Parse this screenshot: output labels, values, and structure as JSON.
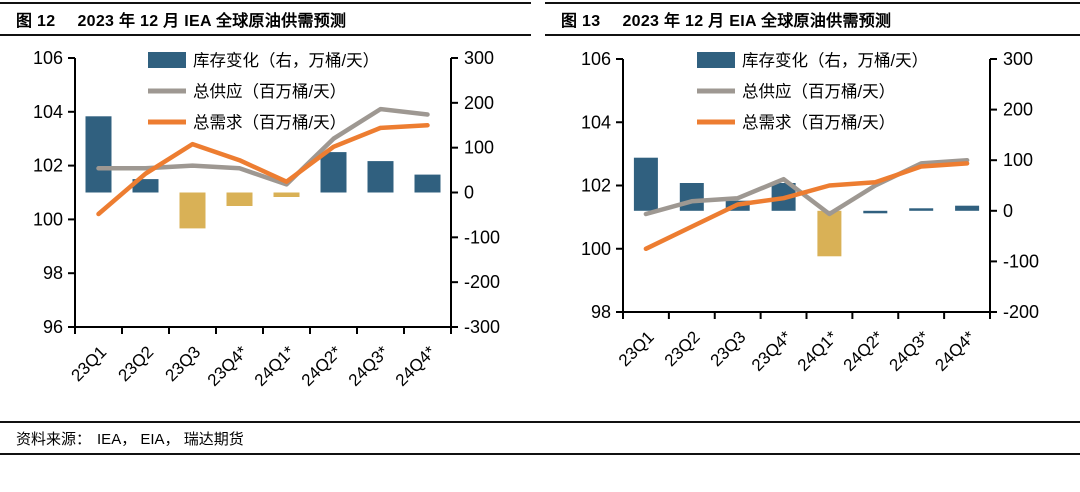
{
  "figures": [
    {
      "fig_label": "图 12",
      "title": "2023 年 12 月 IEA 全球原油供需预测"
    },
    {
      "fig_label": "图 13",
      "title": "2023 年 12 月 EIA 全球原油供需预测"
    }
  ],
  "chart_data": [
    {
      "type": "combo bar+line",
      "title": "图 12 2023 年 12 月 IEA 全球原油供需预测",
      "categories": [
        "23Q1",
        "23Q2",
        "23Q3",
        "23Q4*",
        "24Q1*",
        "24Q2*",
        "24Q3*",
        "24Q4*"
      ],
      "legend": [
        "库存变化（右，万桶/天）",
        "总供应（百万桶/天）",
        "总需求（百万桶/天）"
      ],
      "legend_position": "top-center-overlay",
      "grid": false,
      "left_axis": {
        "min": 96,
        "max": 106,
        "step": 2,
        "ticks": [
          106,
          104,
          102,
          100,
          98,
          96
        ]
      },
      "right_axis": {
        "min": -300,
        "max": 300,
        "step": 100,
        "ticks": [
          300,
          200,
          100,
          0,
          -100,
          -200,
          -300
        ]
      },
      "series": [
        {
          "name": "库存变化（右，万桶/天）",
          "type": "bar",
          "axis": "right",
          "unit": "万桶/天",
          "values": [
            170,
            30,
            -80,
            -30,
            -10,
            90,
            70,
            40
          ],
          "point_colors": [
            "blue",
            "blue",
            "gold",
            "gold",
            "gold",
            "blue",
            "blue",
            "blue"
          ]
        },
        {
          "name": "总供应（百万桶/天）",
          "type": "line",
          "axis": "left",
          "unit": "百万桶/天",
          "values": [
            101.9,
            101.9,
            102.0,
            101.9,
            101.3,
            103.0,
            104.1,
            103.9
          ]
        },
        {
          "name": "总需求（百万桶/天）",
          "type": "line",
          "axis": "left",
          "unit": "百万桶/天",
          "values": [
            100.2,
            101.7,
            102.8,
            102.2,
            101.4,
            102.7,
            103.4,
            103.5
          ]
        }
      ]
    },
    {
      "type": "combo bar+line",
      "title": "图 13 2023 年 12 月 EIA 全球原油供需预测",
      "categories": [
        "23Q1",
        "23Q2",
        "23Q3",
        "23Q4*",
        "24Q1*",
        "24Q2*",
        "24Q3*",
        "24Q4*"
      ],
      "legend": [
        "库存变化（右，万桶/天）",
        "总供应（百万桶/天）",
        "总需求（百万桶/天）"
      ],
      "legend_position": "top-center-overlay",
      "grid": false,
      "left_axis": {
        "min": 98,
        "max": 106,
        "step": 2,
        "ticks": [
          106,
          104,
          102,
          100,
          98
        ]
      },
      "right_axis": {
        "min": -200,
        "max": 300,
        "step": 100,
        "ticks": [
          300,
          200,
          100,
          0,
          -100,
          -200
        ]
      },
      "series": [
        {
          "name": "库存变化（右，万桶/天）",
          "type": "bar",
          "axis": "right",
          "unit": "万桶/天",
          "values": [
            105,
            55,
            20,
            55,
            -90,
            -5,
            5,
            10
          ],
          "point_colors": [
            "blue",
            "blue",
            "blue",
            "blue",
            "gold",
            "blue",
            "blue",
            "blue"
          ]
        },
        {
          "name": "总供应（百万桶/天）",
          "type": "line",
          "axis": "left",
          "unit": "百万桶/天",
          "values": [
            101.1,
            101.5,
            101.6,
            102.2,
            101.1,
            102.0,
            102.7,
            102.8
          ]
        },
        {
          "name": "总需求（百万桶/天）",
          "type": "line",
          "axis": "left",
          "unit": "百万桶/天",
          "values": [
            100.0,
            100.7,
            101.4,
            101.6,
            102.0,
            102.1,
            102.6,
            102.7
          ]
        }
      ]
    }
  ],
  "source": {
    "label": "资料来源：",
    "text": "IEA， EIA， 瑞达期货"
  },
  "colors": {
    "bar_blue": "#30607F",
    "bar_gold": "#D9B156",
    "supply_gray": "#9E9892",
    "demand_orange": "#ED7D31",
    "axis_black": "#000000"
  }
}
